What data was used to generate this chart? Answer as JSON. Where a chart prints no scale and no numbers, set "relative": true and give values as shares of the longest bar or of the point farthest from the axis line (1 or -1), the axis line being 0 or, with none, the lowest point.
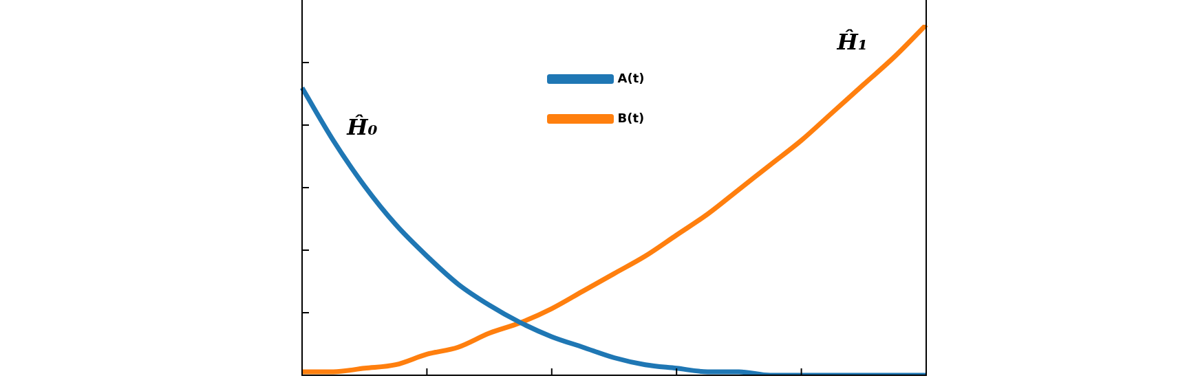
{
  "chart_data": {
    "type": "line",
    "relative": true,
    "legend": "top",
    "annotations": [
      "Ĥ₀",
      "Ĥ₁"
    ],
    "categories": [
      null,
      null,
      null,
      null,
      null,
      null,
      null,
      null,
      null,
      null,
      null,
      null,
      null,
      null,
      null,
      null,
      null,
      null,
      null,
      null,
      null
    ],
    "series": [
      {
        "name": "A(t)",
        "color": "#1f77b4",
        "values": [
          0.82,
          0.67,
          0.54,
          0.43,
          0.34,
          0.26,
          0.2,
          0.15,
          0.11,
          0.08,
          0.05,
          0.03,
          0.02,
          0.01,
          0.01,
          0,
          0,
          0,
          0,
          0,
          0
        ]
      },
      {
        "name": "B(t)",
        "color": "#ff7f0e",
        "values": [
          0.01,
          0.01,
          0.02,
          0.03,
          0.06,
          0.08,
          0.12,
          0.15,
          0.19,
          0.24,
          0.29,
          0.34,
          0.4,
          0.46,
          0.53,
          0.6,
          0.67,
          0.75,
          0.83,
          0.91,
          1
        ]
      }
    ]
  }
}
